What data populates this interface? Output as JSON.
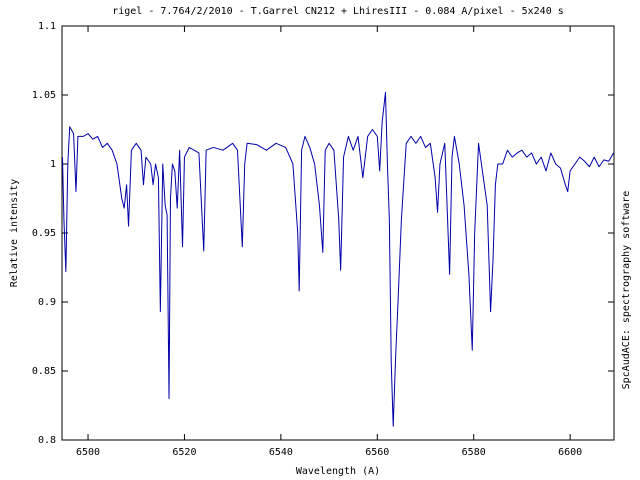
{
  "chart_data": {
    "type": "line",
    "title": "rigel - 7.764/2/2010 - T.Garrel CN212 + LhiresIII - 0.084 A/pixel - 5x240 s",
    "x_label": "Wavelength (A)",
    "y_label": "Relative intensity",
    "side_note": "SpcAudACE: spectrography software",
    "x": [
      6494.7,
      6495.0,
      6495.4,
      6495.8,
      6496.2,
      6497.0,
      6497.5,
      6497.9,
      6499,
      6500,
      6501,
      6502,
      6503,
      6504,
      6505,
      6506,
      6507,
      6507.5,
      6508,
      6508.4,
      6509,
      6510,
      6511,
      6511.5,
      6512,
      6513,
      6513.5,
      6514,
      6514.6,
      6515,
      6515.5,
      6516,
      6516.4,
      6516.8,
      6517.1,
      6517.5,
      6518,
      6518.5,
      6519,
      6519.6,
      6520,
      6521,
      6522,
      6523,
      6524,
      6524.5,
      6526,
      6528,
      6530,
      6531,
      6532,
      6532.5,
      6533,
      6535,
      6537,
      6539,
      6541,
      6542.5,
      6543.5,
      6543.8,
      6544.3,
      6545,
      6546,
      6547,
      6548,
      6548.7,
      6549.2,
      6550,
      6551,
      6552,
      6552.4,
      6553,
      6554,
      6555,
      6556,
      6557,
      6558,
      6559,
      6560,
      6560.5,
      6561,
      6561.7,
      6562.1,
      6562.5,
      6562.9,
      6563.3,
      6563.8,
      6564.3,
      6565,
      6566,
      6567,
      6568,
      6569,
      6570,
      6571,
      6572,
      6572.5,
      6573,
      6574,
      6575,
      6575.5,
      6576,
      6577,
      6578,
      6579,
      6579.7,
      6580.2,
      6581,
      6582,
      6582.8,
      6583.5,
      6584,
      6584.5,
      6585,
      6586,
      6587,
      6588,
      6589,
      6590,
      6591,
      6592,
      6593,
      6594,
      6595,
      6596,
      6597,
      6598,
      6599,
      6599.5,
      6600,
      6601,
      6602,
      6603,
      6604,
      6605,
      6606,
      6607,
      6608,
      6609
    ],
    "series": [
      {
        "name": "rigel",
        "color": "#0000a8",
        "values": [
          1.005,
          0.96,
          0.922,
          1.0,
          1.027,
          1.022,
          0.98,
          1.02,
          1.02,
          1.022,
          1.018,
          1.02,
          1.012,
          1.015,
          1.01,
          1.0,
          0.975,
          0.968,
          0.985,
          0.955,
          1.01,
          1.015,
          1.01,
          0.985,
          1.005,
          1.0,
          0.985,
          1.0,
          0.99,
          0.893,
          1.0,
          0.97,
          0.963,
          0.83,
          0.975,
          1.0,
          0.995,
          0.968,
          1.01,
          0.94,
          1.005,
          1.012,
          1.01,
          1.008,
          0.937,
          1.01,
          1.012,
          1.01,
          1.015,
          1.01,
          0.94,
          1.0,
          1.015,
          1.014,
          1.01,
          1.015,
          1.012,
          1.0,
          0.95,
          0.908,
          1.01,
          1.02,
          1.012,
          1.0,
          0.97,
          0.936,
          1.01,
          1.015,
          1.01,
          0.96,
          0.923,
          1.005,
          1.02,
          1.01,
          1.02,
          0.99,
          1.02,
          1.025,
          1.02,
          0.995,
          1.03,
          1.052,
          1.0,
          0.96,
          0.855,
          0.81,
          0.86,
          0.9,
          0.96,
          1.015,
          1.02,
          1.015,
          1.02,
          1.012,
          1.015,
          0.99,
          0.965,
          1.0,
          1.015,
          0.92,
          1.005,
          1.02,
          1.0,
          0.97,
          0.92,
          0.865,
          0.95,
          1.015,
          0.99,
          0.97,
          0.893,
          0.93,
          0.985,
          1.0,
          1.0,
          1.01,
          1.005,
          1.008,
          1.01,
          1.005,
          1.008,
          1.0,
          1.005,
          0.995,
          1.008,
          1.0,
          0.997,
          0.985,
          0.98,
          0.995,
          1.0,
          1.005,
          1.002,
          0.998,
          1.005,
          0.998,
          1.003,
          1.002,
          1.008
        ]
      }
    ],
    "xlim": [
      6494.6,
      6609.1
    ],
    "xticks": [
      6500,
      6520,
      6540,
      6560,
      6580,
      6600
    ],
    "ylim": [
      0.8,
      1.1
    ],
    "yticks": [
      0.8,
      0.85,
      0.9,
      0.95,
      1,
      1.05,
      1.1
    ]
  }
}
